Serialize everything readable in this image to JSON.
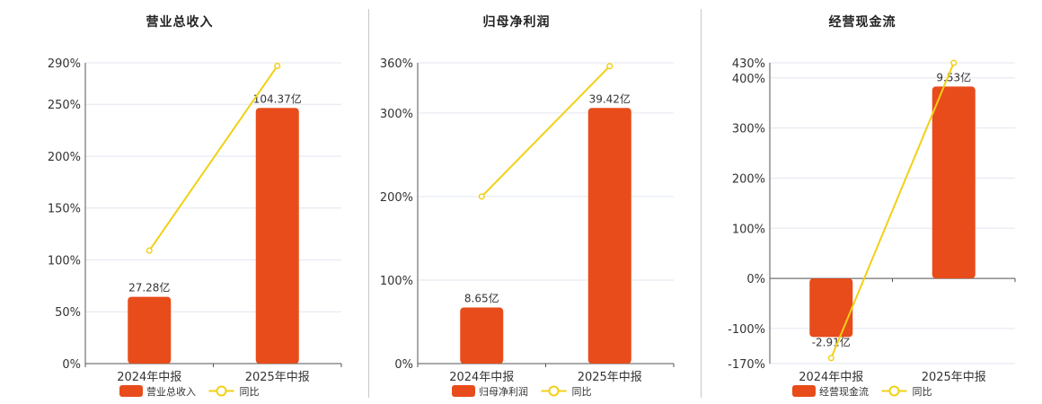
{
  "legend": {
    "yoy_label": "同比"
  },
  "colors": {
    "bar": "#e84c1b",
    "line": "#f2d015",
    "grid": "#e3e6ef",
    "axis": "#555555",
    "text": "#333333"
  },
  "chart_data": [
    {
      "type": "bar",
      "title": "营业总收入",
      "categories": [
        "2024年中报",
        "2025年中报"
      ],
      "bar_labels": [
        "27.28亿",
        "104.37亿"
      ],
      "values_yi": [
        27.28,
        104.37
      ],
      "yoy_pct": [
        109,
        287
      ],
      "yticks": [
        "0%",
        "50%",
        "100%",
        "150%",
        "200%",
        "250%",
        "290%"
      ],
      "ytick_values": [
        0,
        50,
        100,
        150,
        200,
        250,
        290
      ],
      "ylim": [
        0,
        290
      ],
      "series": [
        {
          "name": "营业总收入",
          "type": "bar"
        },
        {
          "name": "同比",
          "type": "line"
        }
      ]
    },
    {
      "type": "bar",
      "title": "归母净利润",
      "categories": [
        "2024年中报",
        "2025年中报"
      ],
      "bar_labels": [
        "8.65亿",
        "39.42亿"
      ],
      "values_yi": [
        8.65,
        39.42
      ],
      "yoy_pct": [
        200,
        356
      ],
      "yticks": [
        "0%",
        "100%",
        "200%",
        "300%",
        "360%"
      ],
      "ytick_values": [
        0,
        100,
        200,
        300,
        360
      ],
      "ylim": [
        0,
        360
      ],
      "series": [
        {
          "name": "归母净利润",
          "type": "bar"
        },
        {
          "name": "同比",
          "type": "line"
        }
      ]
    },
    {
      "type": "bar",
      "title": "经营现金流",
      "categories": [
        "2024年中报",
        "2025年中报"
      ],
      "bar_labels": [
        "-2.91亿",
        "9.53亿"
      ],
      "values_yi": [
        -2.91,
        9.53
      ],
      "yoy_pct": [
        -159,
        430
      ],
      "yticks": [
        "-170%",
        "-100%",
        "0%",
        "100%",
        "200%",
        "300%",
        "400%",
        "430%"
      ],
      "ytick_values": [
        -170,
        -100,
        0,
        100,
        200,
        300,
        400,
        430
      ],
      "ylim": [
        -170,
        430
      ],
      "series": [
        {
          "name": "经营现金流",
          "type": "bar"
        },
        {
          "name": "同比",
          "type": "line"
        }
      ]
    }
  ]
}
